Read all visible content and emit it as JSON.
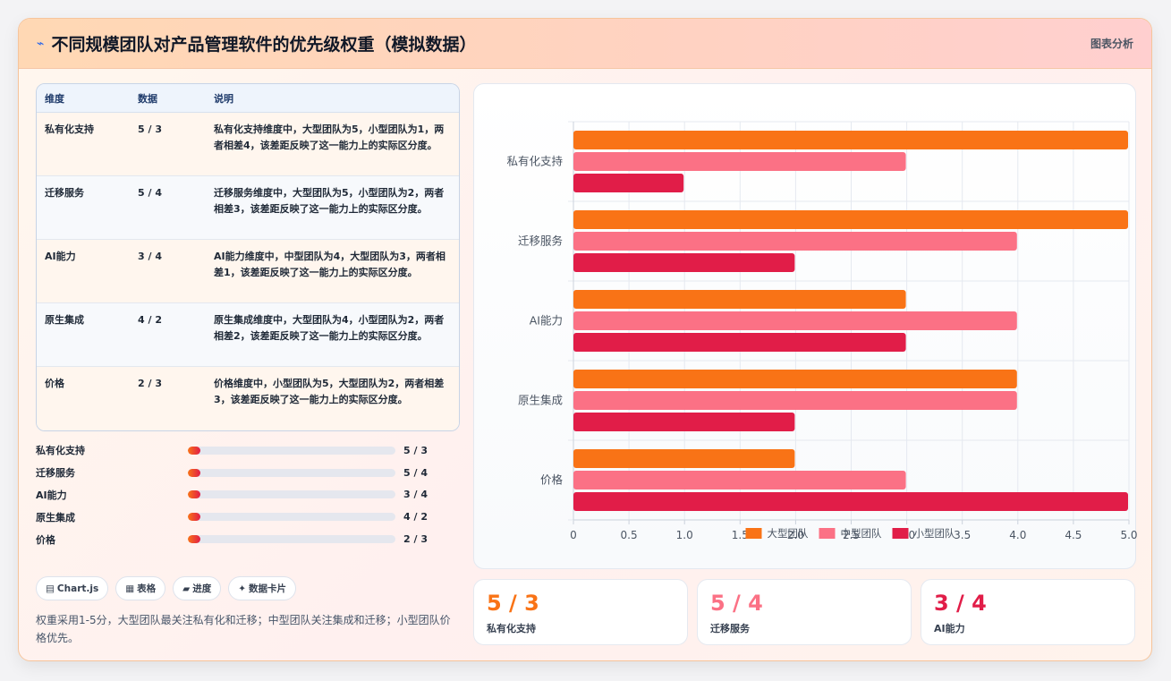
{
  "header": {
    "title_icon": "chart-spark-icon",
    "title": "不同规模团队对产品管理软件的优先级权重（模拟数据）",
    "tag": "图表分析"
  },
  "table": {
    "headers": [
      "维度",
      "数据",
      "说明"
    ],
    "rows": [
      {
        "dim": "私有化支持",
        "data": "5 / 3",
        "desc": "私有化支持维度中，大型团队为5，小型团队为1，两者相差4，该差距反映了这一能力上的实际区分度。"
      },
      {
        "dim": "迁移服务",
        "data": "5 / 4",
        "desc": "迁移服务维度中，大型团队为5，小型团队为2，两者相差3，该差距反映了这一能力上的实际区分度。"
      },
      {
        "dim": "AI能力",
        "data": "3 / 4",
        "desc": "AI能力维度中，中型团队为4，大型团队为3，两者相差1，该差距反映了这一能力上的实际区分度。"
      },
      {
        "dim": "原生集成",
        "data": "4 / 2",
        "desc": "原生集成维度中，大型团队为4，小型团队为2，两者相差2，该差距反映了这一能力上的实际区分度。"
      },
      {
        "dim": "价格",
        "data": "2 / 3",
        "desc": "价格维度中，小型团队为5，大型团队为2，两者相差3，该差距反映了这一能力上的实际区分度。"
      }
    ]
  },
  "progress": [
    {
      "label": "私有化支持",
      "value": "5 / 3",
      "fill": 0.06
    },
    {
      "label": "迁移服务",
      "value": "5 / 4",
      "fill": 0.06
    },
    {
      "label": "AI能力",
      "value": "3 / 4",
      "fill": 0.06
    },
    {
      "label": "原生集成",
      "value": "4 / 2",
      "fill": 0.06
    },
    {
      "label": "价格",
      "value": "2 / 3",
      "fill": 0.06
    }
  ],
  "chips": [
    {
      "icon": "chart-icon",
      "glyph": "▤",
      "label": "Chart.js"
    },
    {
      "icon": "table-icon",
      "glyph": "▦",
      "label": "表格"
    },
    {
      "icon": "progress-icon",
      "glyph": "▰",
      "label": "进度"
    },
    {
      "icon": "sparkle-icon",
      "glyph": "✦",
      "label": "数据卡片"
    }
  ],
  "note": "权重采用1-5分，大型团队最关注私有化和迁移；中型团队关注集成和迁移；小型团队价格优先。",
  "chart_data": {
    "type": "bar",
    "orientation": "horizontal",
    "categories": [
      "私有化支持",
      "迁移服务",
      "AI能力",
      "原生集成",
      "价格"
    ],
    "series": [
      {
        "name": "大型团队",
        "color": "#f97316",
        "values": [
          5,
          5,
          3,
          4,
          2
        ]
      },
      {
        "name": "中型团队",
        "color": "#fb7185",
        "values": [
          3,
          4,
          4,
          4,
          3
        ]
      },
      {
        "name": "小型团队",
        "color": "#e11d48",
        "values": [
          1,
          2,
          3,
          2,
          5
        ]
      }
    ],
    "xlim": [
      0,
      5
    ],
    "xticks": [
      "0",
      "0.5",
      "1.0",
      "1.5",
      "2.0",
      "2.5",
      "3.0",
      "3.5",
      "4.0",
      "4.5",
      "5.0"
    ],
    "grid": true,
    "legend": "bottom"
  },
  "kpis": [
    {
      "value": "5 / 3",
      "label": "私有化支持",
      "color": "#f97316"
    },
    {
      "value": "5 / 4",
      "label": "迁移服务",
      "color": "#fb7185"
    },
    {
      "value": "3 / 4",
      "label": "AI能力",
      "color": "#e11d48"
    }
  ]
}
